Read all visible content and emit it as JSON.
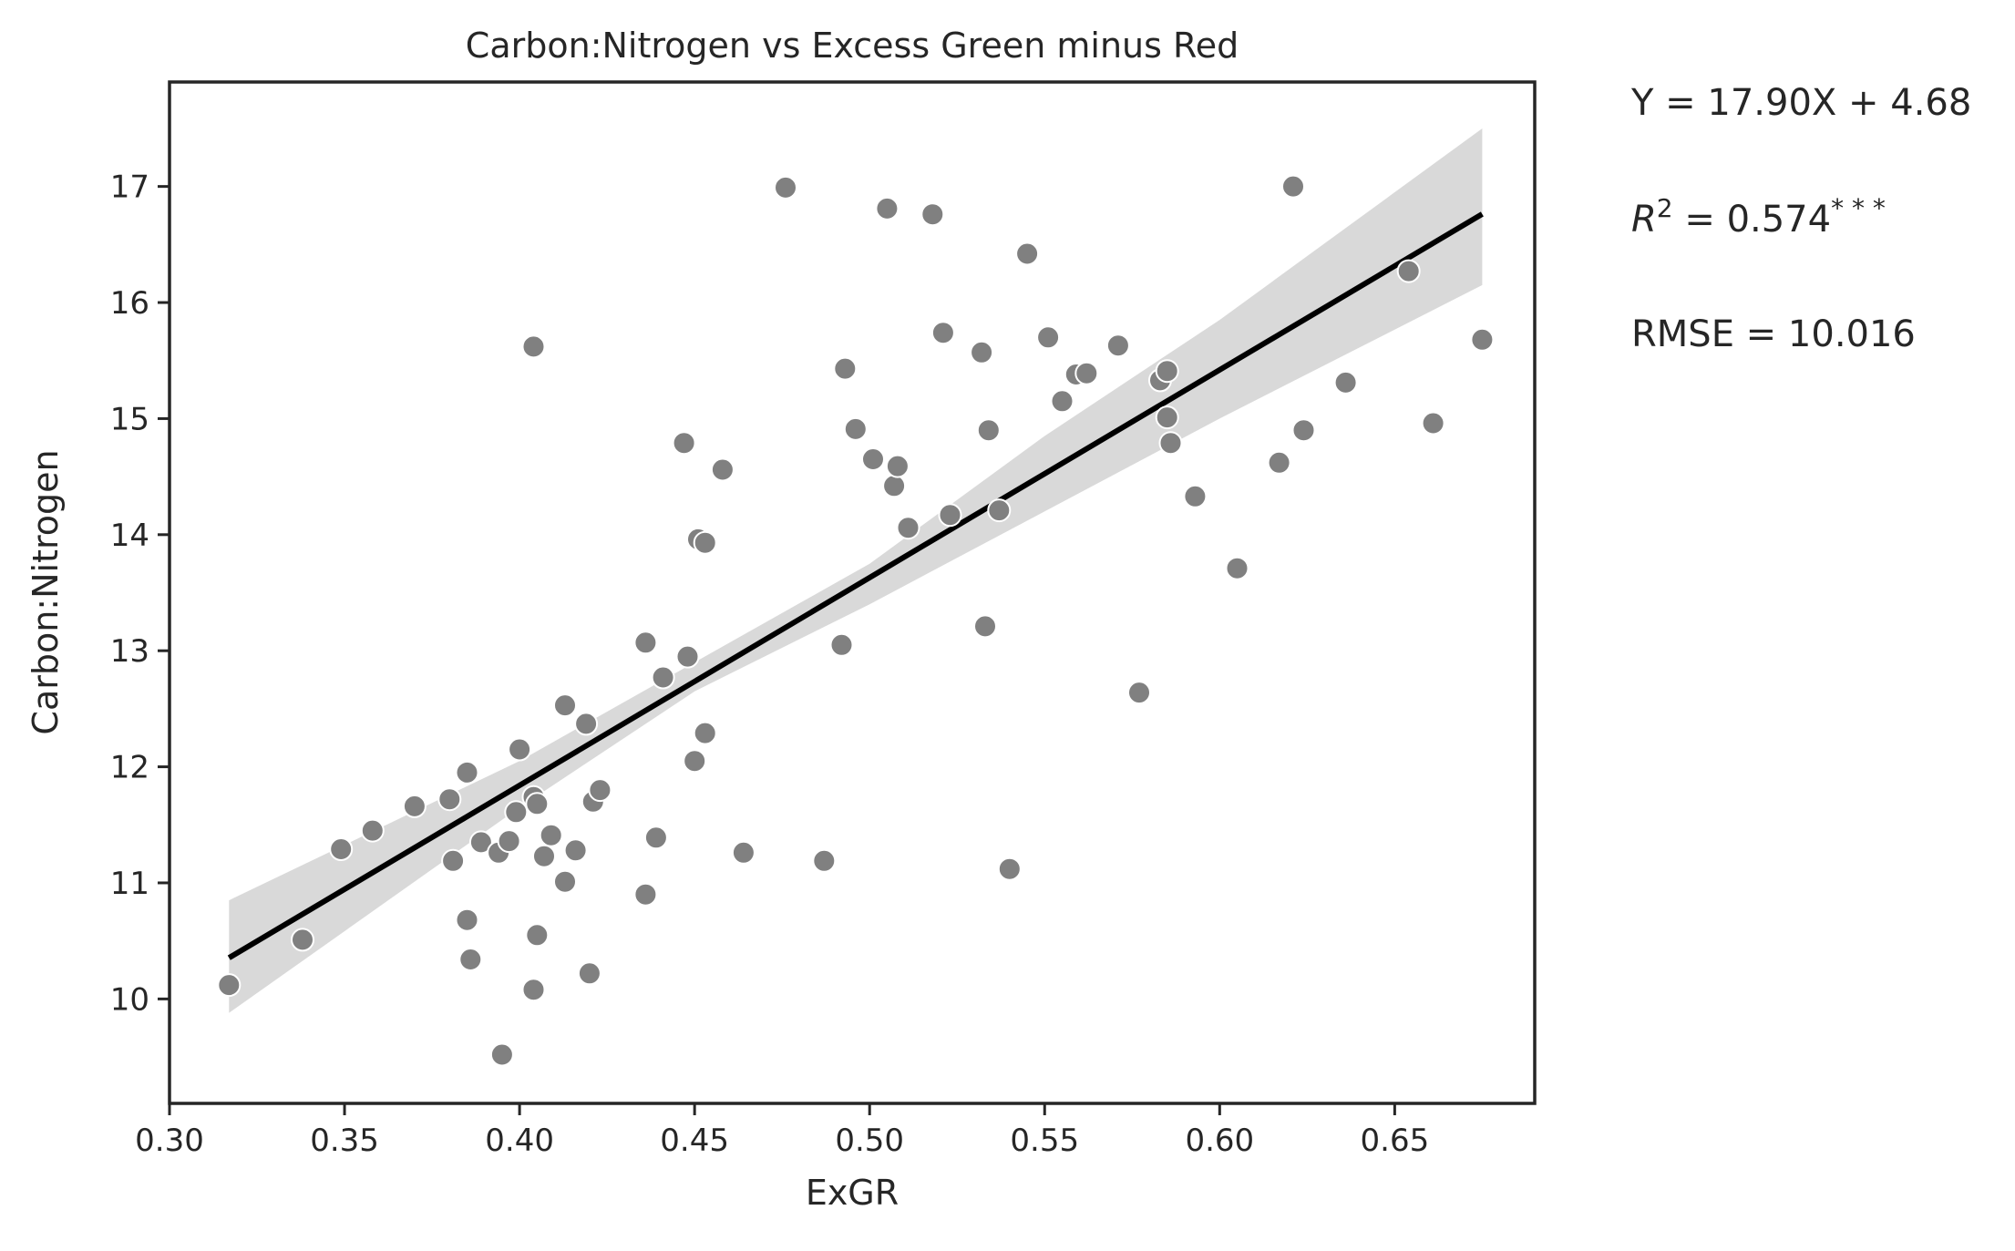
{
  "chart_data": {
    "type": "scatter",
    "title": "Carbon:Nitrogen vs Excess Green minus Red",
    "xlabel": "ExGR",
    "ylabel": "Carbon:Nitrogen",
    "xlim": [
      0.3,
      0.69
    ],
    "ylim": [
      9.1,
      17.9
    ],
    "xticks": [
      0.3,
      0.35,
      0.4,
      0.45,
      0.5,
      0.55,
      0.6,
      0.65
    ],
    "xtick_labels": [
      "0.30",
      "0.35",
      "0.40",
      "0.45",
      "0.50",
      "0.55",
      "0.60",
      "0.65"
    ],
    "yticks": [
      10,
      11,
      12,
      13,
      14,
      15,
      16,
      17
    ],
    "ytick_labels": [
      "10",
      "11",
      "12",
      "13",
      "14",
      "15",
      "16",
      "17"
    ],
    "grid": false,
    "point_color": "#808080",
    "line_color": "#000000",
    "band_color": "#d9d9d9",
    "fit": {
      "slope": 17.9,
      "intercept": 4.68,
      "x_range": [
        0.317,
        0.675
      ]
    },
    "confidence_band": {
      "x": [
        0.317,
        0.4,
        0.45,
        0.5,
        0.55,
        0.6,
        0.675
      ],
      "lower": [
        9.88,
        11.65,
        12.65,
        13.4,
        14.2,
        15.0,
        16.15
      ],
      "upper": [
        10.85,
        12.05,
        12.9,
        13.75,
        14.85,
        15.85,
        17.5
      ]
    },
    "points": [
      {
        "x": 0.317,
        "y": 10.12
      },
      {
        "x": 0.338,
        "y": 10.51
      },
      {
        "x": 0.349,
        "y": 11.29
      },
      {
        "x": 0.358,
        "y": 11.45
      },
      {
        "x": 0.37,
        "y": 11.66
      },
      {
        "x": 0.38,
        "y": 11.72
      },
      {
        "x": 0.385,
        "y": 11.95
      },
      {
        "x": 0.381,
        "y": 11.19
      },
      {
        "x": 0.385,
        "y": 10.68
      },
      {
        "x": 0.386,
        "y": 10.34
      },
      {
        "x": 0.389,
        "y": 11.35
      },
      {
        "x": 0.394,
        "y": 11.26
      },
      {
        "x": 0.395,
        "y": 9.52
      },
      {
        "x": 0.397,
        "y": 11.36
      },
      {
        "x": 0.399,
        "y": 11.61
      },
      {
        "x": 0.4,
        "y": 12.15
      },
      {
        "x": 0.404,
        "y": 11.74
      },
      {
        "x": 0.405,
        "y": 11.68
      },
      {
        "x": 0.404,
        "y": 10.08
      },
      {
        "x": 0.405,
        "y": 10.55
      },
      {
        "x": 0.407,
        "y": 11.23
      },
      {
        "x": 0.409,
        "y": 11.41
      },
      {
        "x": 0.413,
        "y": 11.01
      },
      {
        "x": 0.413,
        "y": 12.53
      },
      {
        "x": 0.416,
        "y": 11.28
      },
      {
        "x": 0.419,
        "y": 12.37
      },
      {
        "x": 0.42,
        "y": 10.22
      },
      {
        "x": 0.421,
        "y": 11.7
      },
      {
        "x": 0.423,
        "y": 11.8
      },
      {
        "x": 0.404,
        "y": 15.62
      },
      {
        "x": 0.436,
        "y": 13.07
      },
      {
        "x": 0.436,
        "y": 10.9
      },
      {
        "x": 0.439,
        "y": 11.39
      },
      {
        "x": 0.441,
        "y": 12.77
      },
      {
        "x": 0.447,
        "y": 14.79
      },
      {
        "x": 0.448,
        "y": 12.95
      },
      {
        "x": 0.45,
        "y": 12.05
      },
      {
        "x": 0.451,
        "y": 13.96
      },
      {
        "x": 0.453,
        "y": 13.93
      },
      {
        "x": 0.453,
        "y": 12.29
      },
      {
        "x": 0.458,
        "y": 14.56
      },
      {
        "x": 0.464,
        "y": 11.26
      },
      {
        "x": 0.476,
        "y": 16.99
      },
      {
        "x": 0.487,
        "y": 11.19
      },
      {
        "x": 0.492,
        "y": 13.05
      },
      {
        "x": 0.493,
        "y": 15.43
      },
      {
        "x": 0.496,
        "y": 14.91
      },
      {
        "x": 0.501,
        "y": 14.65
      },
      {
        "x": 0.505,
        "y": 16.81
      },
      {
        "x": 0.507,
        "y": 14.42
      },
      {
        "x": 0.508,
        "y": 14.59
      },
      {
        "x": 0.511,
        "y": 14.06
      },
      {
        "x": 0.518,
        "y": 16.76
      },
      {
        "x": 0.521,
        "y": 15.74
      },
      {
        "x": 0.523,
        "y": 14.17
      },
      {
        "x": 0.532,
        "y": 15.57
      },
      {
        "x": 0.533,
        "y": 13.21
      },
      {
        "x": 0.534,
        "y": 14.9
      },
      {
        "x": 0.537,
        "y": 14.21
      },
      {
        "x": 0.54,
        "y": 11.12
      },
      {
        "x": 0.545,
        "y": 16.42
      },
      {
        "x": 0.551,
        "y": 15.7
      },
      {
        "x": 0.555,
        "y": 15.15
      },
      {
        "x": 0.559,
        "y": 15.38
      },
      {
        "x": 0.562,
        "y": 15.39
      },
      {
        "x": 0.571,
        "y": 15.63
      },
      {
        "x": 0.577,
        "y": 12.64
      },
      {
        "x": 0.583,
        "y": 15.33
      },
      {
        "x": 0.585,
        "y": 15.41
      },
      {
        "x": 0.585,
        "y": 15.01
      },
      {
        "x": 0.586,
        "y": 14.79
      },
      {
        "x": 0.593,
        "y": 14.33
      },
      {
        "x": 0.605,
        "y": 13.71
      },
      {
        "x": 0.617,
        "y": 14.62
      },
      {
        "x": 0.621,
        "y": 17.0
      },
      {
        "x": 0.624,
        "y": 14.9
      },
      {
        "x": 0.636,
        "y": 15.31
      },
      {
        "x": 0.654,
        "y": 16.27
      },
      {
        "x": 0.661,
        "y": 14.96
      },
      {
        "x": 0.675,
        "y": 15.68
      }
    ]
  },
  "stats": {
    "equation": "Y = 17.90X + 4.68",
    "r2_symbol": "R",
    "r2_exponent": "2",
    "r2_value": " = 0.574",
    "r2_significance": "* * *",
    "rmse": "RMSE = 10.016"
  }
}
